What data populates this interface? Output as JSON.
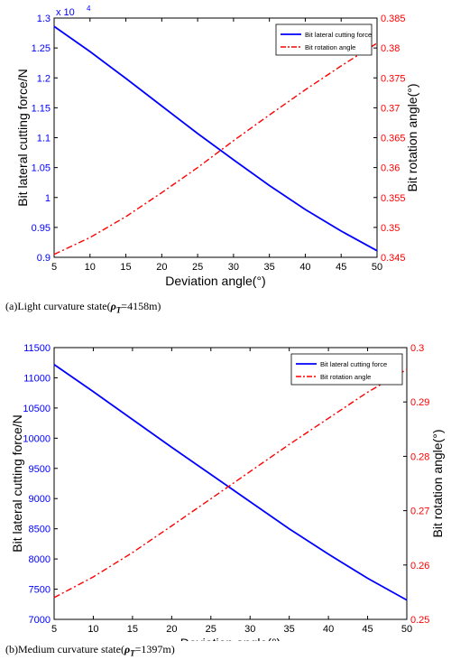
{
  "chart_data": [
    {
      "type": "line",
      "title": "",
      "xlabel": "Deviation angle(°)",
      "ylabel_left": "Bit lateral cutting force/N",
      "ylabel_right": "Bit rotation angle(°)",
      "y_multiplier": "x 10",
      "y_multiplier_exp": "4",
      "xlim": [
        5,
        50
      ],
      "x_ticks": [
        "5",
        "10",
        "15",
        "20",
        "25",
        "30",
        "35",
        "40",
        "45",
        "50"
      ],
      "ylim_left": [
        0.9,
        1.3
      ],
      "y_ticks_left": [
        "0.9",
        "0.95",
        "1",
        "1.05",
        "1.1",
        "1.15",
        "1.2",
        "1.25",
        "1.3"
      ],
      "ylim_right": [
        0.345,
        0.385
      ],
      "y_ticks_right": [
        "0.345",
        "0.35",
        "0.355",
        "0.36",
        "0.365",
        "0.37",
        "0.375",
        "0.38",
        "0.385"
      ],
      "grid": false,
      "legend_position": "top-right",
      "series": [
        {
          "name": "Bit lateral cutting force",
          "axis": "left",
          "color": "#0000ff",
          "style": "solid",
          "x": [
            5,
            10,
            15,
            20,
            25,
            30,
            35,
            40,
            45,
            50
          ],
          "values": [
            1.286,
            1.244,
            1.199,
            1.153,
            1.107,
            1.063,
            1.02,
            0.98,
            0.944,
            0.911
          ]
        },
        {
          "name": "Bit rotation angle",
          "axis": "right",
          "color": "#ff0000",
          "style": "dashdot",
          "x": [
            5,
            10,
            15,
            20,
            25,
            30,
            35,
            40,
            45,
            50
          ],
          "values": [
            0.3455,
            0.3483,
            0.3518,
            0.3558,
            0.36,
            0.3645,
            0.3688,
            0.373,
            0.377,
            0.3808
          ]
        }
      ]
    },
    {
      "type": "line",
      "title": "",
      "xlabel": "Deviation angle(°)",
      "ylabel_left": "Bit lateral cutting force/N",
      "ylabel_right": "Bit rotation angle(°)",
      "xlim": [
        5,
        50
      ],
      "x_ticks": [
        "5",
        "10",
        "15",
        "20",
        "25",
        "30",
        "35",
        "40",
        "45",
        "50"
      ],
      "ylim_left": [
        7000,
        11500
      ],
      "y_ticks_left": [
        "7000",
        "7500",
        "8000",
        "8500",
        "9000",
        "9500",
        "10000",
        "10500",
        "11000",
        "11500"
      ],
      "ylim_right": [
        0.25,
        0.3
      ],
      "y_ticks_right": [
        "0.25",
        "0.26",
        "0.27",
        "0.28",
        "0.29",
        "0.3"
      ],
      "grid": false,
      "legend_position": "top-right",
      "series": [
        {
          "name": "Bit lateral cutting force",
          "axis": "left",
          "color": "#0000ff",
          "style": "solid",
          "x": [
            5,
            10,
            15,
            20,
            25,
            30,
            35,
            40,
            45,
            50
          ],
          "values": [
            11220,
            10770,
            10310,
            9850,
            9400,
            8950,
            8500,
            8080,
            7680,
            7320
          ]
        },
        {
          "name": "Bit rotation angle",
          "axis": "right",
          "color": "#ff0000",
          "style": "dashdot",
          "x": [
            5,
            10,
            15,
            20,
            25,
            30,
            35,
            40,
            45,
            50
          ],
          "values": [
            0.254,
            0.2578,
            0.2623,
            0.2672,
            0.2722,
            0.2772,
            0.2822,
            0.287,
            0.2918,
            0.296
          ]
        }
      ]
    }
  ],
  "captions": [
    {
      "prefix": "(a)Light curvature state(",
      "rho": "ρ",
      "sub": "T",
      "suffix": "=4158m)"
    },
    {
      "prefix": "(b)Medium curvature state(",
      "rho": "ρ",
      "sub": "T",
      "suffix": "=1397m)"
    }
  ]
}
